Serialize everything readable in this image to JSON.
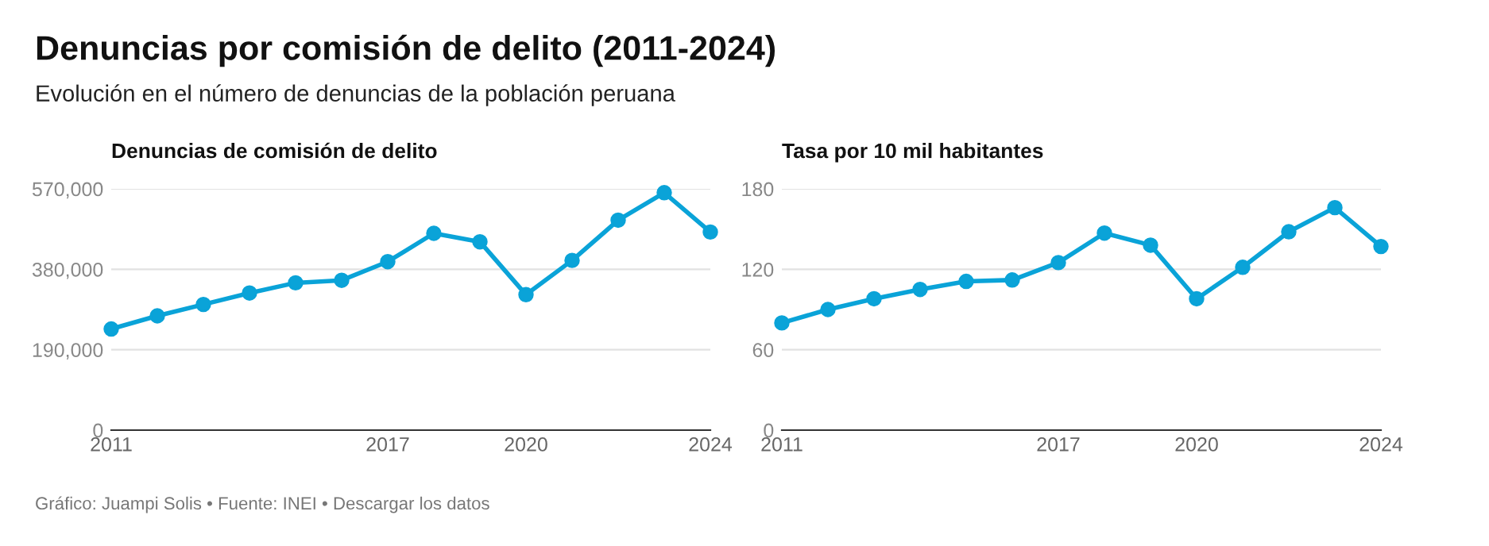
{
  "chart_data": [
    {
      "type": "other",
      "title": "Denuncias por comisión de delito (2011-2024)",
      "subtitle": "Evolución en el número de denuncias de la población peruana",
      "annotations": [
        "Gráfico: Juampi Solis • Fuente: INEI • Descargar los datos"
      ]
    },
    {
      "type": "line",
      "title": "Denuncias de comisión de delito",
      "x": [
        2011,
        2012,
        2013,
        2014,
        2015,
        2016,
        2017,
        2018,
        2019,
        2020,
        2021,
        2022,
        2023,
        2024
      ],
      "series": [
        {
          "color": "#0aa3d8",
          "values": [
            239000,
            270000,
            297000,
            324000,
            348000,
            354000,
            398000,
            465000,
            445000,
            320000,
            401000,
            496000,
            561000,
            468000
          ]
        }
      ],
      "xlim": [
        2011,
        2024
      ],
      "xticks": [
        2011,
        2017,
        2020,
        2024
      ],
      "ylim": [
        0,
        570000
      ],
      "yticks": [
        {
          "value": 0,
          "label": "0"
        },
        {
          "value": 190000,
          "label": "190,000"
        },
        {
          "value": 380000,
          "label": "380,000"
        },
        {
          "value": 570000,
          "label": "570,000"
        }
      ],
      "grid": "y",
      "marker": "circle",
      "line_style": "solid"
    },
    {
      "type": "line",
      "title": "Tasa por 10 mil habitantes",
      "x": [
        2011,
        2012,
        2013,
        2014,
        2015,
        2016,
        2017,
        2018,
        2019,
        2020,
        2021,
        2022,
        2023,
        2024
      ],
      "series": [
        {
          "color": "#0aa3d8",
          "values": [
            80,
            90,
            98,
            105,
            111,
            112,
            125,
            147,
            138,
            98,
            121.5,
            148,
            166,
            137
          ]
        }
      ],
      "xlim": [
        2011,
        2024
      ],
      "xticks": [
        2011,
        2017,
        2020,
        2024
      ],
      "ylim": [
        0,
        180
      ],
      "yticks": [
        0,
        60,
        120,
        180
      ],
      "grid": "y",
      "marker": "circle",
      "line_style": "solid"
    }
  ]
}
